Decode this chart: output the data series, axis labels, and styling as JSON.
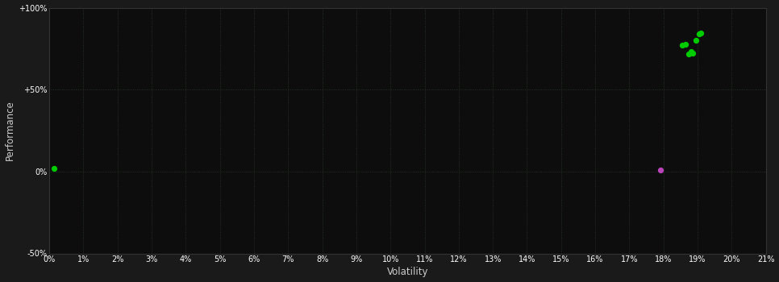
{
  "background_color": "#1a1a1a",
  "plot_bg_color": "#0d0d0d",
  "grid_color": "#2a3a2a",
  "grid_style": ":",
  "xlabel": "Volatility",
  "ylabel": "Performance",
  "xlim": [
    0,
    0.21
  ],
  "ylim": [
    -0.5,
    1.0
  ],
  "xticks": [
    0.0,
    0.01,
    0.02,
    0.03,
    0.04,
    0.05,
    0.06,
    0.07,
    0.08,
    0.09,
    0.1,
    0.11,
    0.12,
    0.13,
    0.14,
    0.15,
    0.16,
    0.17,
    0.18,
    0.19,
    0.2,
    0.21
  ],
  "ytick_labels": [
    "-50%",
    "0%",
    "+50%",
    "+100%"
  ],
  "ytick_vals": [
    -0.5,
    0.0,
    0.5,
    1.0
  ],
  "green_points": [
    [
      0.0015,
      0.02
    ],
    [
      0.1855,
      0.77
    ],
    [
      0.1865,
      0.775
    ],
    [
      0.1875,
      0.715
    ],
    [
      0.1885,
      0.72
    ],
    [
      0.188,
      0.73
    ],
    [
      0.1895,
      0.8
    ],
    [
      0.1905,
      0.84
    ],
    [
      0.191,
      0.845
    ]
  ],
  "magenta_points": [
    [
      0.179,
      0.01
    ]
  ],
  "green_color": "#00cc00",
  "magenta_color": "#bb44bb",
  "point_size": 18,
  "tick_color": "#ffffff",
  "tick_fontsize": 7,
  "label_fontsize": 8.5,
  "label_color": "#cccccc",
  "spine_color": "#333333",
  "border_color": "#333333"
}
